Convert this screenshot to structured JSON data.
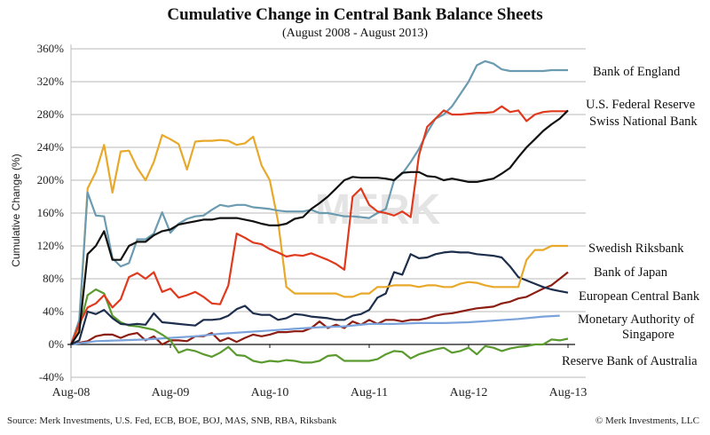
{
  "chart_data": {
    "type": "line",
    "title": "Cumulative Change in Central Bank Balance Sheets",
    "subtitle": "(August 2008 - August 2013)",
    "xlabel": "",
    "ylabel": "Cumulative Change (%)",
    "ylim": [
      -40,
      360
    ],
    "yticks": [
      -40,
      0,
      40,
      80,
      120,
      160,
      200,
      240,
      280,
      320,
      360
    ],
    "ytick_labels": [
      "-40%",
      "0%",
      "40%",
      "80%",
      "120%",
      "160%",
      "200%",
      "240%",
      "280%",
      "320%",
      "360%"
    ],
    "xlim_months": [
      0,
      60
    ],
    "xtick_months": [
      0,
      12,
      24,
      36,
      48,
      60
    ],
    "xtick_labels": [
      "Aug-08",
      "Aug-09",
      "Aug-10",
      "Aug-11",
      "Aug-12",
      "Aug-13"
    ],
    "grid": true,
    "legend": "right (labels at series ends)",
    "x_unit": "months since Aug-08",
    "series": [
      {
        "name": "Bank of England",
        "color": "#6a9bb0",
        "x": [
          0,
          1,
          2,
          3,
          4,
          5,
          6,
          7,
          8,
          9,
          10,
          11,
          12,
          13,
          14,
          15,
          16,
          17,
          18,
          19,
          20,
          21,
          22,
          23,
          24,
          25,
          26,
          27,
          28,
          29,
          30,
          31,
          32,
          33,
          34,
          35,
          36,
          37,
          38,
          39,
          40,
          41,
          42,
          43,
          44,
          45,
          46,
          47,
          48,
          49,
          50,
          51,
          52,
          53,
          54,
          55,
          56,
          57,
          58,
          59,
          60
        ],
        "values": [
          0,
          30,
          185,
          157,
          156,
          105,
          95,
          99,
          128,
          128,
          135,
          161,
          136,
          147,
          153,
          156,
          157,
          164,
          170,
          168,
          170,
          170,
          167,
          166,
          165,
          163,
          162,
          162,
          162,
          164,
          160,
          160,
          158,
          156,
          156,
          155,
          154,
          160,
          165,
          200,
          208,
          222,
          238,
          258,
          275,
          280,
          290,
          305,
          320,
          340,
          345,
          342,
          335,
          333,
          333,
          333,
          333,
          333,
          334,
          334,
          334
        ]
      },
      {
        "name": "U.S. Federal Reserve",
        "color": "#e03a1e",
        "x": [
          0,
          1,
          2,
          3,
          4,
          5,
          6,
          7,
          8,
          9,
          10,
          11,
          12,
          13,
          14,
          15,
          16,
          17,
          18,
          19,
          20,
          21,
          22,
          23,
          24,
          25,
          26,
          27,
          28,
          29,
          30,
          31,
          32,
          33,
          34,
          35,
          36,
          37,
          38,
          39,
          40,
          41,
          42,
          43,
          44,
          45,
          46,
          47,
          48,
          49,
          50,
          51,
          52,
          53,
          54,
          55,
          56,
          57,
          58,
          59,
          60
        ],
        "values": [
          0,
          25,
          45,
          50,
          60,
          45,
          55,
          82,
          87,
          80,
          88,
          64,
          68,
          57,
          60,
          64,
          58,
          50,
          49,
          72,
          135,
          130,
          124,
          122,
          116,
          112,
          107,
          109,
          108,
          111,
          107,
          103,
          98,
          91,
          180,
          190,
          170,
          162,
          160,
          157,
          162,
          155,
          230,
          265,
          275,
          285,
          280,
          280,
          281,
          282,
          282,
          283,
          290,
          283,
          285,
          272,
          280,
          283,
          284,
          284,
          284
        ]
      },
      {
        "name": "Swiss National Bank",
        "color": "#111111",
        "x": [
          0,
          1,
          2,
          3,
          4,
          5,
          6,
          7,
          8,
          9,
          10,
          11,
          12,
          13,
          14,
          15,
          16,
          17,
          18,
          19,
          20,
          21,
          22,
          23,
          24,
          25,
          26,
          27,
          28,
          29,
          30,
          31,
          32,
          33,
          34,
          35,
          36,
          37,
          38,
          39,
          40,
          41,
          42,
          43,
          44,
          45,
          46,
          47,
          48,
          49,
          50,
          51,
          52,
          53,
          54,
          55,
          56,
          57,
          58,
          59,
          60
        ],
        "values": [
          0,
          15,
          110,
          120,
          138,
          103,
          103,
          120,
          125,
          125,
          133,
          138,
          140,
          146,
          148,
          150,
          152,
          152,
          154,
          154,
          154,
          152,
          150,
          147,
          145,
          145,
          147,
          153,
          155,
          165,
          172,
          180,
          190,
          200,
          204,
          203,
          203,
          203,
          202,
          200,
          209,
          210,
          210,
          205,
          204,
          200,
          202,
          200,
          198,
          198,
          200,
          202,
          208,
          215,
          228,
          240,
          250,
          260,
          268,
          275,
          285
        ]
      },
      {
        "name": "Swedish Riksbank",
        "color": "#e8a92b",
        "x": [
          0,
          1,
          2,
          3,
          4,
          5,
          6,
          7,
          8,
          9,
          10,
          11,
          12,
          13,
          14,
          15,
          16,
          17,
          18,
          19,
          20,
          21,
          22,
          23,
          24,
          25,
          26,
          27,
          28,
          29,
          30,
          31,
          32,
          33,
          34,
          35,
          36,
          37,
          38,
          39,
          40,
          41,
          42,
          43,
          44,
          45,
          46,
          47,
          48,
          49,
          50,
          51,
          52,
          53,
          54,
          55,
          56,
          57,
          58,
          59,
          60
        ],
        "values": [
          0,
          20,
          190,
          210,
          243,
          185,
          235,
          236,
          215,
          200,
          222,
          255,
          250,
          244,
          213,
          247,
          248,
          248,
          249,
          248,
          243,
          245,
          253,
          218,
          200,
          150,
          70,
          62,
          62,
          62,
          62,
          62,
          62,
          58,
          58,
          62,
          62,
          70,
          70,
          72,
          72,
          72,
          70,
          72,
          72,
          70,
          70,
          74,
          76,
          75,
          72,
          70,
          70,
          70,
          70,
          103,
          115,
          115,
          120,
          120,
          120
        ]
      },
      {
        "name": "Bank of Japan",
        "color": "#8c1d12",
        "x": [
          0,
          2,
          3,
          4,
          5,
          6,
          7,
          8,
          9,
          10,
          11,
          12,
          13,
          14,
          15,
          16,
          17,
          18,
          19,
          20,
          21,
          22,
          23,
          24,
          25,
          26,
          27,
          28,
          29,
          30,
          31,
          32,
          33,
          34,
          35,
          36,
          37,
          38,
          39,
          40,
          41,
          42,
          43,
          44,
          45,
          46,
          47,
          48,
          49,
          50,
          51,
          52,
          53,
          54,
          55,
          56,
          57,
          58,
          59,
          60
        ],
        "values": [
          0,
          4,
          10,
          12,
          12,
          8,
          12,
          14,
          5,
          10,
          0,
          5,
          5,
          4,
          10,
          10,
          14,
          4,
          8,
          3,
          8,
          12,
          10,
          12,
          15,
          15,
          16,
          16,
          20,
          28,
          20,
          24,
          20,
          28,
          24,
          30,
          25,
          30,
          30,
          28,
          30,
          30,
          32,
          35,
          37,
          38,
          40,
          42,
          44,
          45,
          46,
          50,
          52,
          56,
          58,
          63,
          68,
          72,
          80,
          88
        ]
      },
      {
        "name": "European Central Bank",
        "color": "#1e2f4d",
        "x": [
          0,
          1,
          2,
          3,
          4,
          5,
          6,
          7,
          8,
          9,
          10,
          11,
          12,
          13,
          14,
          15,
          16,
          17,
          18,
          19,
          20,
          21,
          22,
          23,
          24,
          25,
          26,
          27,
          28,
          29,
          30,
          31,
          32,
          33,
          34,
          35,
          36,
          37,
          38,
          39,
          40,
          41,
          42,
          43,
          44,
          45,
          46,
          47,
          48,
          49,
          50,
          51,
          52,
          53,
          54,
          55,
          56,
          57,
          58,
          59,
          60
        ],
        "values": [
          0,
          5,
          40,
          37,
          42,
          32,
          25,
          24,
          25,
          24,
          38,
          27,
          26,
          25,
          24,
          23,
          30,
          30,
          31,
          35,
          43,
          47,
          38,
          36,
          36,
          30,
          32,
          37,
          36,
          34,
          33,
          32,
          30,
          30,
          35,
          37,
          42,
          57,
          62,
          88,
          85,
          110,
          105,
          106,
          110,
          112,
          113,
          112,
          112,
          110,
          109,
          108,
          106,
          95,
          82,
          78,
          74,
          70,
          67,
          65,
          63
        ]
      },
      {
        "name": "Monetary Authority of Singapore",
        "color": "#7ba3db",
        "x": [
          0,
          3,
          6,
          9,
          12,
          15,
          18,
          21,
          24,
          27,
          30,
          33,
          36,
          39,
          42,
          45,
          48,
          51,
          54,
          57,
          59
        ],
        "values": [
          0,
          4,
          5,
          6,
          8,
          10,
          13,
          15,
          17,
          19,
          21,
          22,
          25,
          25,
          26,
          26,
          27,
          29,
          31,
          34,
          35
        ]
      },
      {
        "name": "Reserve Bank of Australia",
        "color": "#5a9a2f",
        "x": [
          0,
          1,
          2,
          3,
          4,
          5,
          6,
          7,
          8,
          9,
          10,
          11,
          12,
          13,
          14,
          15,
          16,
          17,
          18,
          19,
          20,
          21,
          22,
          23,
          24,
          25,
          26,
          27,
          28,
          29,
          30,
          31,
          32,
          33,
          34,
          35,
          36,
          37,
          38,
          39,
          40,
          41,
          42,
          43,
          44,
          45,
          46,
          47,
          48,
          49,
          50,
          51,
          52,
          53,
          54,
          55,
          56,
          57,
          58,
          59,
          60
        ],
        "values": [
          0,
          20,
          60,
          67,
          62,
          35,
          27,
          23,
          22,
          20,
          18,
          12,
          5,
          -10,
          -6,
          -8,
          -12,
          -15,
          -10,
          -3,
          -13,
          -14,
          -20,
          -22,
          -20,
          -21,
          -19,
          -20,
          -22,
          -22,
          -20,
          -14,
          -13,
          -20,
          -20,
          -20,
          -20,
          -18,
          -12,
          -8,
          -9,
          -17,
          -12,
          -9,
          -6,
          -4,
          -10,
          -8,
          -4,
          -12,
          -2,
          -4,
          -8,
          -5,
          -3,
          -2,
          0,
          0,
          6,
          5,
          7
        ]
      }
    ]
  },
  "labels": {
    "source": "Source: Merk Investments, U.S. Fed, ECB, BOE, BOJ, MAS, SNB, RBA, Riksbank",
    "copyright": "© Merk Investments, LLC",
    "watermark": "MERK"
  },
  "legend_labels": [
    {
      "name": "Bank of England",
      "lines": [
        "Bank of England"
      ]
    },
    {
      "name": "U.S. Federal Reserve",
      "lines": [
        "U.S. Federal Reserve"
      ]
    },
    {
      "name": "Swiss National Bank",
      "lines": [
        "Swiss National Bank"
      ]
    },
    {
      "name": "Swedish Riksbank",
      "lines": [
        "Swedish Riksbank"
      ]
    },
    {
      "name": "Bank of Japan",
      "lines": [
        "Bank of Japan"
      ]
    },
    {
      "name": "European Central Bank",
      "lines": [
        "European Central Bank"
      ]
    },
    {
      "name": "Monetary Authority of Singapore",
      "lines": [
        "Monetary Authority of",
        "Singapore"
      ]
    },
    {
      "name": "Reserve Bank of Australia",
      "lines": [
        "Reserve Bank of Australia"
      ]
    }
  ]
}
